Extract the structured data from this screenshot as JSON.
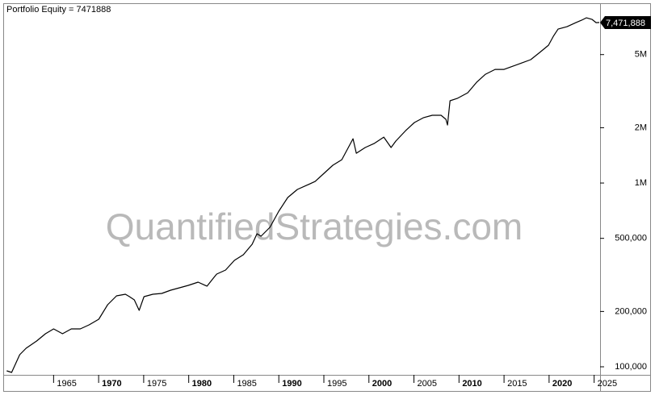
{
  "chart_data": {
    "type": "line",
    "title": "Portfolio Equity = 7471888",
    "watermark": "QuantifiedStrategies.com",
    "log_scale": true,
    "grid": false,
    "xlim": [
      1959.5,
      2025.66
    ],
    "xticks": [
      1965,
      1970,
      1975,
      1980,
      1985,
      1990,
      1995,
      2000,
      2005,
      2010,
      2015,
      2020,
      2025
    ],
    "ylim": [
      90400,
      9420000
    ],
    "yticks": [
      {
        "value": 100000,
        "label": "100,000"
      },
      {
        "value": 200000,
        "label": "200,000"
      },
      {
        "value": 500000,
        "label": "500,000"
      },
      {
        "value": 1000000,
        "label": "1M"
      },
      {
        "value": 2000000,
        "label": "2M"
      },
      {
        "value": 5000000,
        "label": "5M"
      }
    ],
    "last_value": {
      "value": 7471888,
      "label": "7,471,888"
    },
    "series": [
      {
        "name": "Portfolio Equity",
        "color": "#000000",
        "x": [
          1959.8,
          1960.34,
          1961.24,
          1961.95,
          1963.12,
          1964.1,
          1965.0,
          1965.99,
          1966.97,
          1967.96,
          1968.94,
          1970.02,
          1971.0,
          1971.99,
          1972.97,
          1973.42,
          1973.96,
          1974.5,
          1975.04,
          1976.02,
          1977.01,
          1977.99,
          1978.98,
          1979.96,
          1981.04,
          1982.03,
          1982.74,
          1983.1,
          1984.09,
          1985.07,
          1986.06,
          1987.04,
          1987.58,
          1988.03,
          1989.01,
          1990.0,
          1990.99,
          1992.06,
          1993.05,
          1994.03,
          1995.02,
          1996.0,
          1996.99,
          1998.24,
          1998.6,
          1999.59,
          2000.57,
          2001.65,
          2002.46,
          2002.99,
          2004.07,
          2005.05,
          2006.04,
          2007.03,
          2008.01,
          2008.55,
          2008.73,
          2009.0,
          2009.8,
          2010.97,
          2011.95,
          2012.94,
          2014.01,
          2015.0,
          2015.99,
          2016.97,
          2017.96,
          2018.95,
          2019.93,
          2020.47,
          2021.0,
          2021.99,
          2022.97,
          2023.6,
          2024.14,
          2024.77,
          2025.22,
          2025.57
        ],
        "values": [
          95100,
          93200,
          116400,
          126200,
          138200,
          151300,
          160800,
          151300,
          160800,
          160800,
          169100,
          181500,
          217700,
          243200,
          248100,
          240800,
          231200,
          202800,
          240800,
          248100,
          250700,
          261000,
          269100,
          277300,
          288800,
          274500,
          303700,
          319400,
          336000,
          379300,
          407000,
          464200,
          529300,
          513500,
          573900,
          702400,
          833900,
          922400,
          969900,
          1020300,
          1128900,
          1249000,
          1340000,
          1742000,
          1453000,
          1560000,
          1640000,
          1778000,
          1560000,
          1691000,
          1928000,
          2133000,
          2266000,
          2336000,
          2336000,
          2221000,
          2069000,
          2802000,
          2887000,
          3099000,
          3533000,
          3909000,
          4153000,
          4153000,
          4325000,
          4503000,
          4690000,
          5135000,
          5623000,
          6283000,
          6881000,
          7093000,
          7463000,
          7691000,
          7929000,
          7770000,
          7463000,
          7471888
        ]
      }
    ]
  }
}
